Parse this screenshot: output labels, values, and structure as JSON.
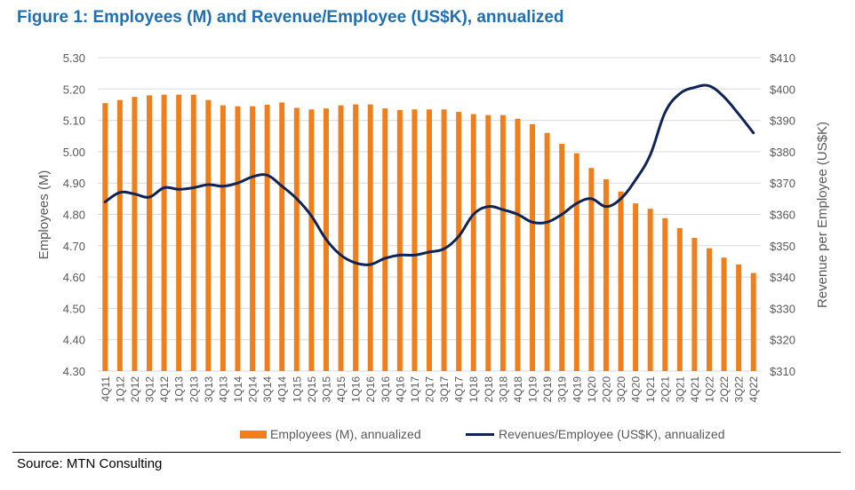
{
  "title": "Figure 1: Employees (M) and Revenue/Employee (US$K), annualized",
  "source": "Source: MTN Consulting",
  "chart_data": {
    "type": "bar+line",
    "categories": [
      "4Q11",
      "1Q12",
      "2Q12",
      "3Q12",
      "4Q12",
      "1Q13",
      "2Q13",
      "3Q13",
      "4Q13",
      "1Q14",
      "2Q14",
      "3Q14",
      "4Q14",
      "1Q15",
      "2Q15",
      "3Q15",
      "4Q15",
      "1Q16",
      "2Q16",
      "3Q16",
      "4Q16",
      "1Q17",
      "2Q17",
      "3Q17",
      "4Q17",
      "1Q18",
      "2Q18",
      "3Q18",
      "4Q18",
      "1Q19",
      "2Q19",
      "3Q19",
      "4Q19",
      "1Q20",
      "2Q20",
      "3Q20",
      "4Q20",
      "1Q21",
      "2Q21",
      "3Q21",
      "4Q21",
      "1Q22",
      "2Q22",
      "3Q22",
      "4Q22"
    ],
    "series": [
      {
        "name": "Employees (M), annualized",
        "type": "bar",
        "axis": "left",
        "color": "#f07f1b",
        "values": [
          5.155,
          5.165,
          5.175,
          5.18,
          5.182,
          5.182,
          5.182,
          5.165,
          5.148,
          5.145,
          5.145,
          5.15,
          5.157,
          5.14,
          5.135,
          5.138,
          5.148,
          5.151,
          5.151,
          5.138,
          5.133,
          5.135,
          5.135,
          5.135,
          5.127,
          5.12,
          5.117,
          5.117,
          5.105,
          5.088,
          5.06,
          5.025,
          4.995,
          4.948,
          4.912,
          4.873,
          4.835,
          4.818,
          4.788,
          4.756,
          4.725,
          4.692,
          4.662,
          4.64,
          4.613
        ]
      },
      {
        "name": "Revenues/Employee (US$K), annualized",
        "type": "line",
        "axis": "right",
        "color": "#0f2454",
        "values": [
          364,
          367,
          366.5,
          365.5,
          368.5,
          368,
          368.5,
          369.5,
          369,
          370,
          372,
          372.5,
          369,
          365,
          359.5,
          352,
          347,
          344.5,
          344,
          346,
          347,
          347,
          348,
          349,
          353,
          360,
          362.5,
          361.5,
          360,
          357.5,
          357.5,
          360,
          363.5,
          365,
          362.5,
          365,
          371,
          379,
          392.5,
          398.5,
          400.5,
          401,
          397.5,
          392,
          386
        ]
      }
    ],
    "ylabel_left": "Employees (M)",
    "ylabel_right": "Revenue per Employee (US$K)",
    "ylim_left": [
      4.3,
      5.3
    ],
    "ylim_right": [
      310,
      410
    ],
    "yticks_left": [
      "4.30",
      "4.40",
      "4.50",
      "4.60",
      "4.70",
      "4.80",
      "4.90",
      "5.00",
      "5.10",
      "5.20",
      "5.30"
    ],
    "yticks_right": [
      "$310",
      "$320",
      "$330",
      "$340",
      "$350",
      "$360",
      "$370",
      "$380",
      "$390",
      "$400",
      "$410"
    ],
    "grid": true,
    "legend_position": "bottom"
  }
}
